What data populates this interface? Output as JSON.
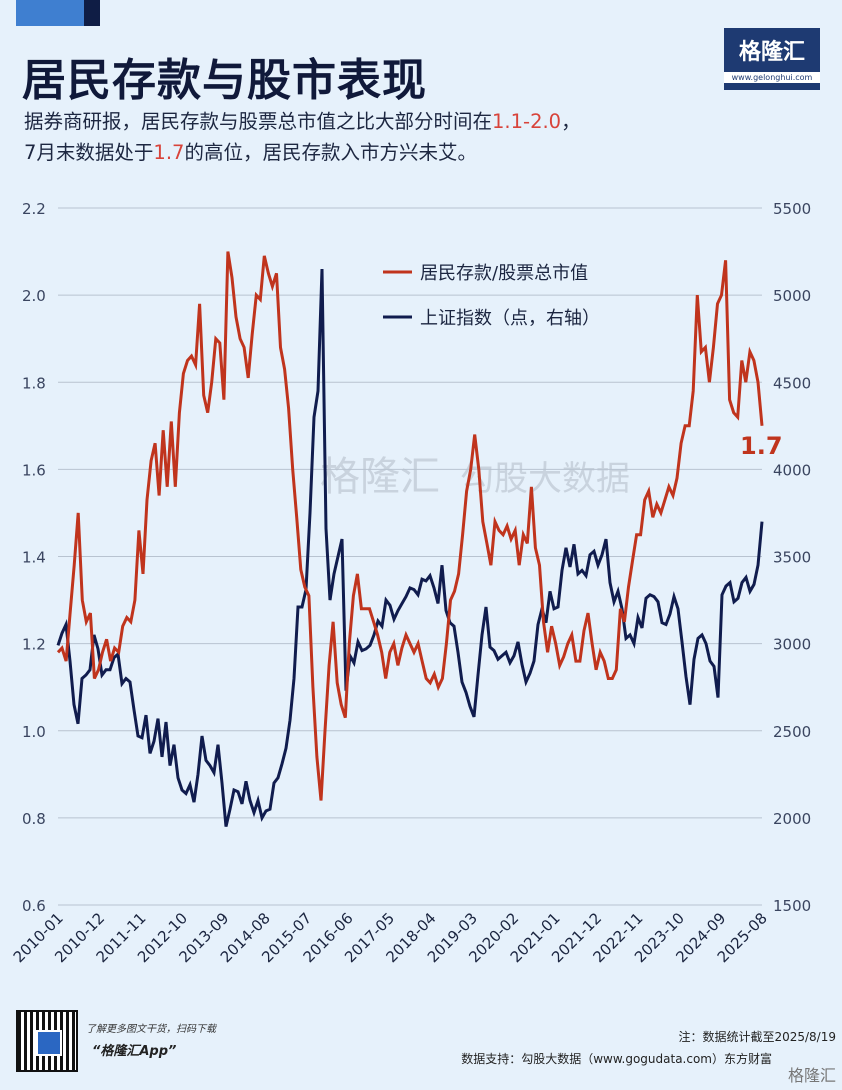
{
  "header": {
    "title": "居民存款与股市表现",
    "subtitle_line1_a": "据券商研报，居民存款与股票总市值之比大部分时间在",
    "subtitle_line1_hl": "1.1-2.0",
    "subtitle_line1_b": "，",
    "subtitle_line2_a": "7月末数据处于",
    "subtitle_line2_hl": "1.7",
    "subtitle_line2_b": "的高位，居民存款入市方兴未艾。",
    "logo_text": "格隆汇",
    "logo_url": "www.gelonghui.com"
  },
  "footer": {
    "promo": "了解更多图文干货，扫码下载",
    "app": "“格隆汇App”",
    "note": "注：数据统计截至2025/8/19",
    "source": "数据支持：勾股大数据（www.gogudata.com）东方财富",
    "watermark": "格隆汇"
  },
  "watermark": {
    "center_a": "格隆汇",
    "center_b": "勾股大数据"
  },
  "colors": {
    "ratio": "#c0341d",
    "index": "#101c4e",
    "highlight": "#d8433a",
    "grid": "#b8c3d0"
  },
  "chart_data": {
    "type": "line",
    "x_ticks": [
      "2010-01",
      "2010-12",
      "2011-11",
      "2012-10",
      "2013-09",
      "2014-08",
      "2015-07",
      "2016-06",
      "2017-05",
      "2018-04",
      "2019-03",
      "2020-02",
      "2021-01",
      "2021-12",
      "2022-11",
      "2023-10",
      "2024-09",
      "2025-08"
    ],
    "y_left_ticks": [
      "0.6",
      "0.8",
      "1.0",
      "1.2",
      "1.4",
      "1.6",
      "1.8",
      "2.0",
      "2.2"
    ],
    "y_right_ticks": [
      "1500",
      "2000",
      "2500",
      "3000",
      "3500",
      "4000",
      "4500",
      "5000",
      "5500"
    ],
    "ylim_left": [
      0.6,
      2.2
    ],
    "ylim_right": [
      1500,
      5500
    ],
    "legend": [
      "居民存款/股票总市值",
      "上证指数（点，右轴）"
    ],
    "end_label": "1.7",
    "series": [
      {
        "name": "居民存款/股票总市值",
        "axis": "left",
        "values": [
          1.18,
          1.19,
          1.16,
          1.27,
          1.38,
          1.5,
          1.3,
          1.25,
          1.27,
          1.12,
          1.14,
          1.18,
          1.21,
          1.16,
          1.19,
          1.18,
          1.24,
          1.26,
          1.25,
          1.3,
          1.46,
          1.36,
          1.53,
          1.62,
          1.66,
          1.54,
          1.69,
          1.56,
          1.71,
          1.56,
          1.73,
          1.82,
          1.85,
          1.86,
          1.84,
          1.98,
          1.77,
          1.73,
          1.8,
          1.9,
          1.89,
          1.76,
          2.1,
          2.04,
          1.95,
          1.9,
          1.88,
          1.81,
          1.91,
          2.0,
          1.99,
          2.09,
          2.05,
          2.02,
          2.05,
          1.88,
          1.83,
          1.74,
          1.6,
          1.49,
          1.37,
          1.33,
          1.31,
          1.1,
          0.94,
          0.84,
          1.0,
          1.15,
          1.25,
          1.11,
          1.06,
          1.03,
          1.2,
          1.31,
          1.36,
          1.28,
          1.28,
          1.28,
          1.25,
          1.22,
          1.18,
          1.12,
          1.18,
          1.2,
          1.15,
          1.19,
          1.22,
          1.2,
          1.18,
          1.2,
          1.16,
          1.12,
          1.11,
          1.13,
          1.1,
          1.12,
          1.2,
          1.3,
          1.32,
          1.36,
          1.45,
          1.55,
          1.6,
          1.68,
          1.6,
          1.48,
          1.43,
          1.38,
          1.48,
          1.46,
          1.45,
          1.47,
          1.44,
          1.46,
          1.38,
          1.45,
          1.43,
          1.56,
          1.42,
          1.38,
          1.25,
          1.18,
          1.24,
          1.2,
          1.15,
          1.17,
          1.2,
          1.22,
          1.16,
          1.16,
          1.23,
          1.27,
          1.2,
          1.14,
          1.18,
          1.16,
          1.12,
          1.12,
          1.14,
          1.28,
          1.25,
          1.33,
          1.39,
          1.45,
          1.45,
          1.53,
          1.55,
          1.49,
          1.52,
          1.5,
          1.53,
          1.56,
          1.54,
          1.58,
          1.66,
          1.7,
          1.7,
          1.78,
          2.0,
          1.87,
          1.88,
          1.8,
          1.88,
          1.98,
          2.0,
          2.08,
          1.76,
          1.73,
          1.72,
          1.85,
          1.8,
          1.87,
          1.85,
          1.8,
          1.7
        ]
      },
      {
        "name": "上证指数（点，右轴）",
        "axis": "right",
        "values": [
          2990,
          3060,
          3110,
          2900,
          2650,
          2540,
          2800,
          2820,
          2850,
          3050,
          2970,
          2820,
          2850,
          2850,
          2920,
          2940,
          2770,
          2800,
          2780,
          2620,
          2470,
          2460,
          2590,
          2370,
          2440,
          2570,
          2350,
          2550,
          2300,
          2420,
          2230,
          2160,
          2140,
          2190,
          2090,
          2250,
          2470,
          2330,
          2300,
          2260,
          2420,
          2200,
          1950,
          2050,
          2160,
          2150,
          2080,
          2210,
          2100,
          2030,
          2100,
          2000,
          2040,
          2050,
          2200,
          2230,
          2310,
          2400,
          2560,
          2800,
          3210,
          3210,
          3310,
          3750,
          4300,
          4450,
          5150,
          3660,
          3250,
          3400,
          3500,
          3600,
          2730,
          2930,
          2890,
          3010,
          2960,
          2970,
          2990,
          3050,
          3130,
          3100,
          3250,
          3220,
          3140,
          3190,
          3230,
          3270,
          3320,
          3310,
          3280,
          3370,
          3360,
          3390,
          3320,
          3230,
          3450,
          3190,
          3120,
          3100,
          2950,
          2780,
          2720,
          2640,
          2580,
          2820,
          3050,
          3210,
          2980,
          2960,
          2910,
          2930,
          2950,
          2890,
          2930,
          3010,
          2880,
          2780,
          2830,
          2900,
          3110,
          3200,
          3120,
          3300,
          3200,
          3210,
          3420,
          3550,
          3440,
          3570,
          3400,
          3420,
          3390,
          3510,
          3530,
          3450,
          3510,
          3600,
          3350,
          3240,
          3300,
          3200,
          3030,
          3050,
          3000,
          3150,
          3090,
          3260,
          3280,
          3270,
          3240,
          3120,
          3110,
          3170,
          3270,
          3200,
          3010,
          2810,
          2650,
          2910,
          3030,
          3050,
          3000,
          2900,
          2870,
          2690,
          3280,
          3330,
          3350,
          3240,
          3260,
          3350,
          3380,
          3300,
          3340,
          3450,
          3700
        ]
      }
    ]
  }
}
